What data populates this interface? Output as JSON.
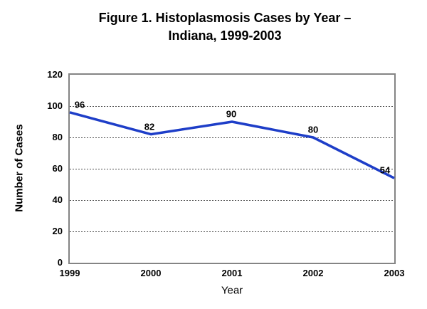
{
  "chart_data": {
    "type": "line",
    "title": "Figure 1. Histoplasmosis Cases by Year –\nIndiana, 1999-2003",
    "categories": [
      "1999",
      "2000",
      "2001",
      "2002",
      "2003"
    ],
    "values": [
      96,
      82,
      90,
      80,
      54
    ],
    "data_labels": [
      "96",
      "82",
      "90",
      "80",
      "54"
    ],
    "xlabel": "Year",
    "ylabel": "Number of Cases",
    "ylim": [
      0,
      120
    ],
    "ytick_step": 20,
    "ytick_labels": [
      "0",
      "20",
      "40",
      "60",
      "80",
      "100",
      "120"
    ],
    "grid": "horizontal-dotted",
    "legend": "none",
    "line_color": "#1E3EC8",
    "plot_border_color": "#848484",
    "gridline_color": "#4d4d4d",
    "text_color": "#000000",
    "background_color": "#ffffff",
    "label_dx": [
      14,
      -2,
      -1,
      0,
      -13
    ]
  }
}
